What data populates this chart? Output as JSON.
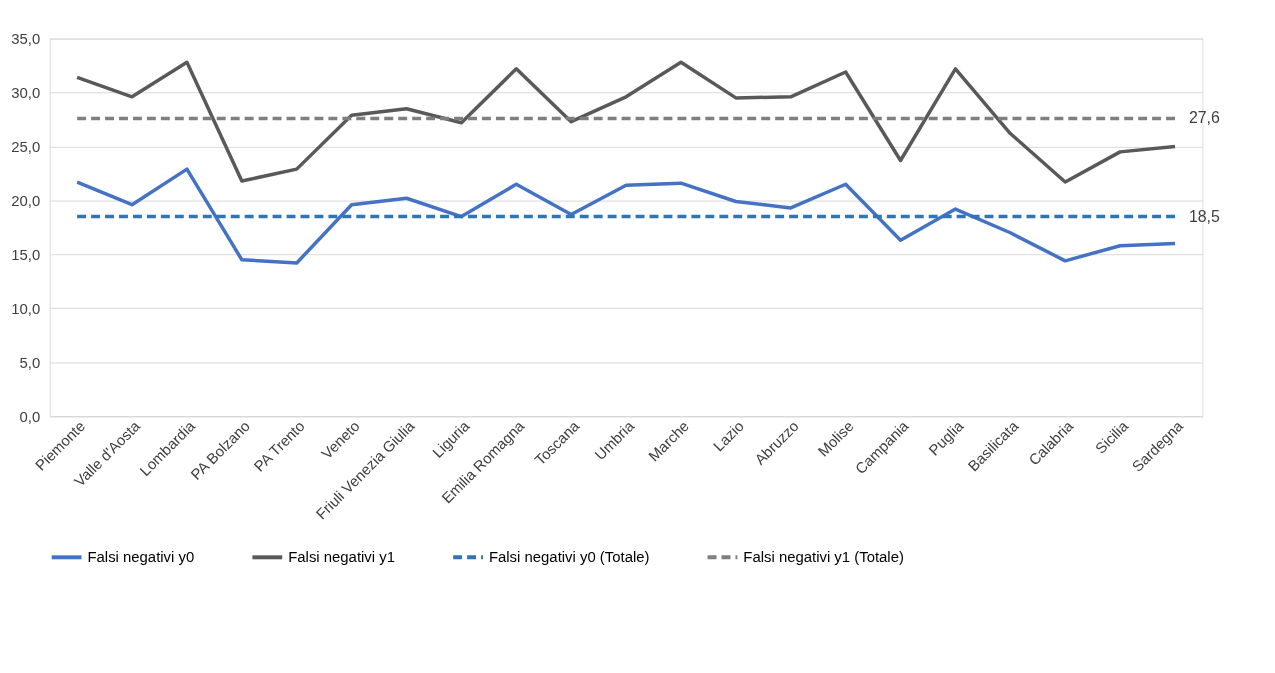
{
  "chart_data": {
    "type": "line",
    "categories": [
      "Piemonte",
      "Valle d'Aosta",
      "Lombardia",
      "PA Bolzano",
      "PA Trento",
      "Veneto",
      "Friuli Venezia Giulia",
      "Liguria",
      "Emilia Romagna",
      "Toscana",
      "Umbria",
      "Marche",
      "Lazio",
      "Abruzzo",
      "Molise",
      "Campania",
      "Puglia",
      "Basilicata",
      "Calabria",
      "Sicilia",
      "Sardegna"
    ],
    "series": [
      {
        "name": "Falsi negativi y0",
        "color": "#4472c4",
        "line_style": "solid",
        "values": [
          21.7,
          19.6,
          22.9,
          14.5,
          14.2,
          19.6,
          20.2,
          18.5,
          21.5,
          18.7,
          21.4,
          21.6,
          19.9,
          19.3,
          21.5,
          16.3,
          19.2,
          17.0,
          14.4,
          15.8,
          16.0
        ]
      },
      {
        "name": "Falsi negativi y1",
        "color": "#595959",
        "line_style": "solid",
        "values": [
          31.4,
          29.6,
          32.8,
          21.8,
          22.9,
          27.9,
          28.5,
          27.2,
          32.2,
          27.3,
          29.6,
          32.8,
          29.5,
          29.6,
          31.9,
          23.7,
          32.2,
          26.2,
          21.7,
          24.5,
          25.0
        ]
      },
      {
        "name": "Falsi negativi y0 (Totale)",
        "color": "#2e75b6",
        "line_style": "dashed",
        "values": [
          18.5,
          18.5,
          18.5,
          18.5,
          18.5,
          18.5,
          18.5,
          18.5,
          18.5,
          18.5,
          18.5,
          18.5,
          18.5,
          18.5,
          18.5,
          18.5,
          18.5,
          18.5,
          18.5,
          18.5,
          18.5
        ],
        "value_labels": [
          null,
          null,
          null,
          null,
          null,
          null,
          null,
          null,
          null,
          null,
          null,
          null,
          null,
          null,
          null,
          null,
          null,
          null,
          null,
          null,
          "18,5"
        ]
      },
      {
        "name": "Falsi negativi y1 (Totale)",
        "color": "#7f7f7f",
        "line_style": "dashed",
        "values": [
          27.6,
          27.6,
          27.6,
          27.6,
          27.6,
          27.6,
          27.6,
          27.6,
          27.6,
          27.6,
          27.6,
          27.6,
          27.6,
          27.6,
          27.6,
          27.6,
          27.6,
          27.6,
          27.6,
          27.6,
          27.6
        ],
        "value_labels": [
          null,
          null,
          null,
          null,
          null,
          null,
          null,
          null,
          null,
          null,
          null,
          null,
          null,
          null,
          null,
          null,
          null,
          null,
          null,
          null,
          "27,6"
        ]
      }
    ],
    "ylim": [
      0,
      35
    ],
    "yticks": [
      {
        "value": 0,
        "label": "0,0"
      },
      {
        "value": 5,
        "label": "5,0"
      },
      {
        "value": 10,
        "label": "10,0"
      },
      {
        "value": 15,
        "label": "15,0"
      },
      {
        "value": 20,
        "label": "20,0"
      },
      {
        "value": 25,
        "label": "25,0"
      },
      {
        "value": 30,
        "label": "30,0"
      },
      {
        "value": 35,
        "label": "35,0"
      }
    ],
    "grid": "y",
    "legend": "bottom",
    "marker": "none"
  }
}
